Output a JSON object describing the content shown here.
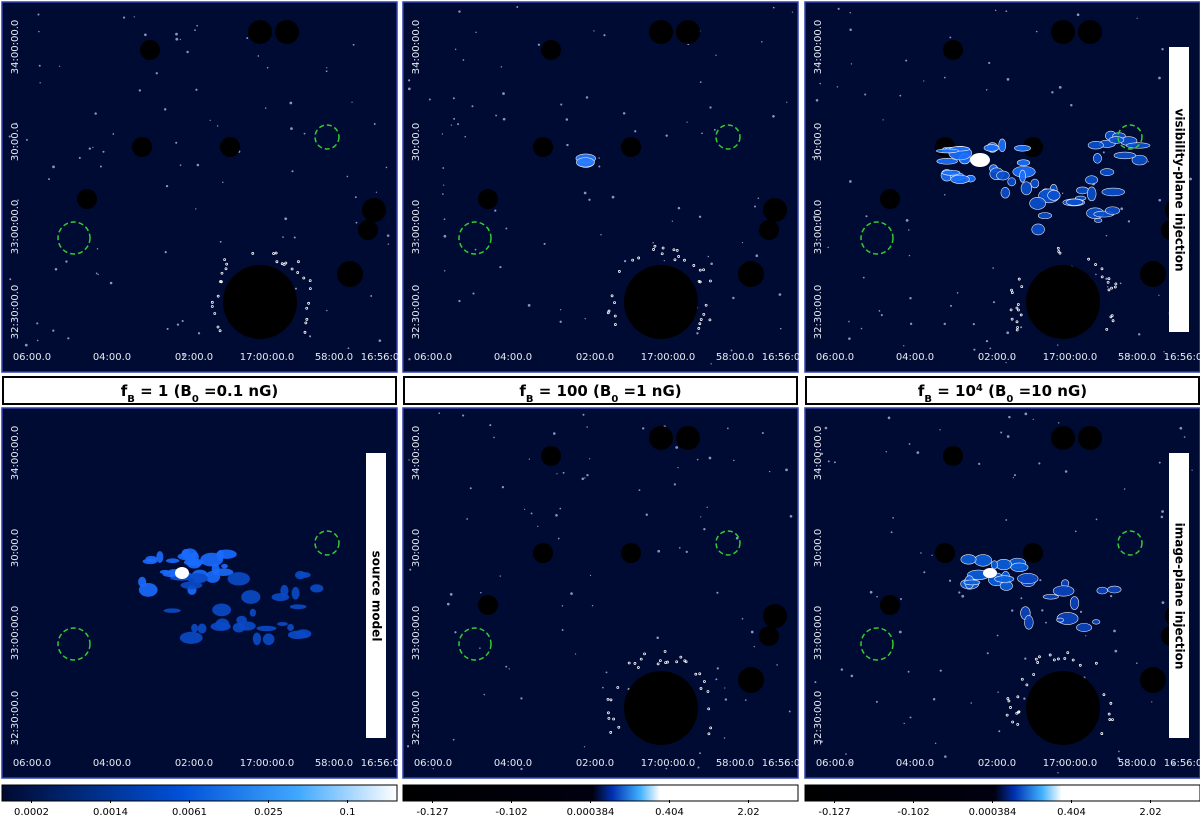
{
  "axes": {
    "yticks": [
      "34:00:00.0",
      "30:00.0",
      "33:00:00.0",
      "32:30:00.0"
    ],
    "xticks": [
      "06:00.0",
      "04:00.0",
      "02:00.0",
      "17:00:00.0",
      "58:00.0",
      "16:56:0"
    ]
  },
  "side_labels": [
    "visibility-plane injection",
    "source model",
    "image-plane injection"
  ],
  "captions": [
    [
      {
        "t": "f"
      },
      {
        "t": "B",
        "pos": "sub"
      },
      {
        "t": " = 1 (B"
      },
      {
        "t": "0",
        "pos": "sub"
      },
      {
        "t": " =0.1 nG)"
      }
    ],
    [
      {
        "t": "f"
      },
      {
        "t": "B",
        "pos": "sub"
      },
      {
        "t": " = 100 (B"
      },
      {
        "t": "0",
        "pos": "sub"
      },
      {
        "t": " =1 nG)"
      }
    ],
    [
      {
        "t": "f"
      },
      {
        "t": "B",
        "pos": "sub"
      },
      {
        "t": " = 10"
      },
      {
        "t": "4",
        "pos": "sup"
      },
      {
        "t": "  (B"
      },
      {
        "t": "0",
        "pos": "sub"
      },
      {
        "t": " =10 nG)"
      }
    ]
  ],
  "colorbars": [
    [
      "0.0002",
      "0.0014",
      "0.0061",
      "0.025",
      "0.1"
    ],
    [
      "-0.127",
      "-0.102",
      "0.000384",
      "0.404",
      "2.02"
    ],
    [
      "-0.127",
      "-0.102",
      "0.000384",
      "0.404",
      "2.02"
    ]
  ]
}
